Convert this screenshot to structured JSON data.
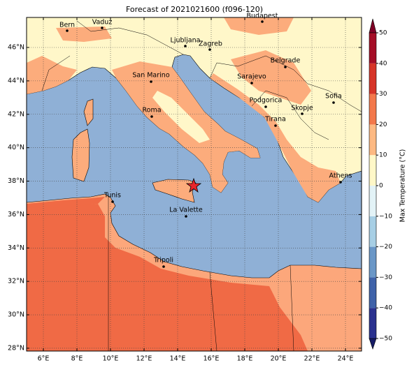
{
  "title": "Forecast of 2021021600 (f096-120)",
  "map": {
    "xticks": [
      {
        "value": 6,
        "label": "6°E"
      },
      {
        "value": 8,
        "label": "8°E"
      },
      {
        "value": 10,
        "label": "10°E"
      },
      {
        "value": 12,
        "label": "12°E"
      },
      {
        "value": 14,
        "label": "14°E"
      },
      {
        "value": 16,
        "label": "16°E"
      },
      {
        "value": 18,
        "label": "18°E"
      },
      {
        "value": 20,
        "label": "20°E"
      },
      {
        "value": 22,
        "label": "22°E"
      },
      {
        "value": 24,
        "label": "24°E"
      }
    ],
    "yticks": [
      {
        "value": 28,
        "label": "28°N"
      },
      {
        "value": 30,
        "label": "30°N"
      },
      {
        "value": 32,
        "label": "32°N"
      },
      {
        "value": 34,
        "label": "34°N"
      },
      {
        "value": 36,
        "label": "36°N"
      },
      {
        "value": 38,
        "label": "38°N"
      },
      {
        "value": 40,
        "label": "40°N"
      },
      {
        "value": 42,
        "label": "42°N"
      },
      {
        "value": 44,
        "label": "44°N"
      },
      {
        "value": 46,
        "label": "46°N"
      }
    ],
    "grid": true,
    "cities": [
      "Bern",
      "Vaduz",
      "Budapest",
      "Ljubljana",
      "Zagreb",
      "Belgrade",
      "San Marino",
      "Sarajevo",
      "Sofia",
      "Podgorica",
      "Skopje",
      "Roma",
      "Tirana",
      "Athens",
      "Tunis",
      "La Valette",
      "Tripoli"
    ]
  },
  "colorbar": {
    "label": "Max Temperature (°C)",
    "ticks": [
      {
        "value": -50,
        "label": "−50"
      },
      {
        "value": -40,
        "label": "−40"
      },
      {
        "value": -30,
        "label": "−30"
      },
      {
        "value": -20,
        "label": "−20"
      },
      {
        "value": -10,
        "label": "−10"
      },
      0,
      10,
      20,
      30,
      40,
      50
    ],
    "colors": [
      "#2a318f",
      "#3f62a9",
      "#6a97c7",
      "#a7cfe5",
      "#e3f3f7",
      "#fff8c8",
      "#fdb982",
      "#f3784b",
      "#d73528",
      "#a50d26"
    ]
  }
}
